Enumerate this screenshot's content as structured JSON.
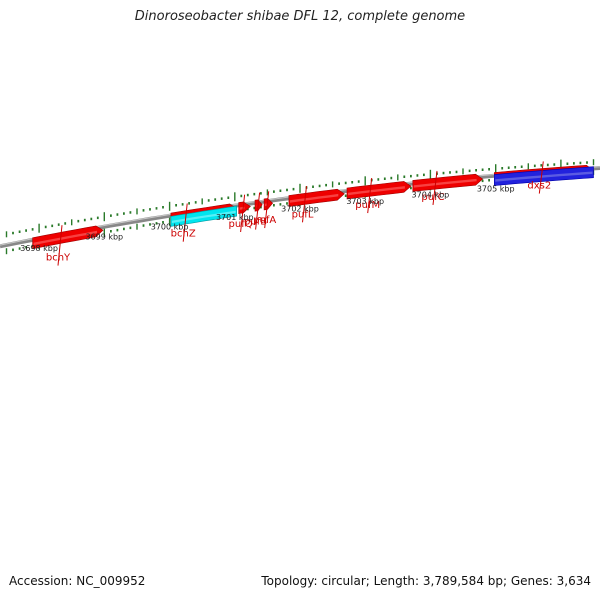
{
  "title": "Dinoroseobacter shibae DFL 12, complete genome",
  "footer": {
    "accession": "Accession: NC_009952",
    "summary": "Topology: circular; Length: 3,789,584 bp; Genes: 3,634"
  },
  "colors": {
    "forward_gene": "#ee0000",
    "reverse_gene_dark": "#cc0000",
    "cyan_gene": "#00e5ee",
    "blue_gene": "#2222dd",
    "backbone": "#888888",
    "tick": "#2a7a2a",
    "label": "#cc0000"
  },
  "genes": [
    {
      "name": "bchY",
      "start_kbp": 3697.9,
      "end_kbp": 3698.98,
      "strand": "+",
      "color": "red",
      "label_kbp": 3698.35
    },
    {
      "name": "bchZ",
      "start_kbp": 3700.02,
      "end_kbp": 3701.03,
      "strand": "+",
      "color": "red",
      "label_kbp": 3700.27
    },
    {
      "name": "",
      "start_kbp": 3700.02,
      "end_kbp": 3701.03,
      "strand": "-",
      "color": "cyan"
    },
    {
      "name": "pufQ",
      "start_kbp": 3701.06,
      "end_kbp": 3701.24,
      "strand": "+",
      "color": "red",
      "label_kbp": 3701.15
    },
    {
      "name": "pufB",
      "start_kbp": 3701.31,
      "end_kbp": 3701.42,
      "strand": "+",
      "color": "red",
      "label_kbp": 3701.38
    },
    {
      "name": "pufA",
      "start_kbp": 3701.45,
      "end_kbp": 3701.58,
      "strand": "+",
      "color": "red",
      "label_kbp": 3701.52
    },
    {
      "name": "pufL",
      "start_kbp": 3701.83,
      "end_kbp": 3702.68,
      "strand": "+",
      "color": "red",
      "label_kbp": 3702.1
    },
    {
      "name": "pufM",
      "start_kbp": 3702.72,
      "end_kbp": 3703.7,
      "strand": "+",
      "color": "red",
      "label_kbp": 3703.1
    },
    {
      "name": "pufC",
      "start_kbp": 3703.73,
      "end_kbp": 3704.8,
      "strand": "+",
      "color": "red",
      "label_kbp": 3704.1
    },
    {
      "name": "dxs2",
      "start_kbp": 3704.98,
      "end_kbp": 3706.5,
      "strand": "+",
      "color": "red",
      "label_kbp": 3705.73
    },
    {
      "name": "",
      "start_kbp": 3704.98,
      "end_kbp": 3706.5,
      "strand": "-",
      "color": "blue"
    }
  ],
  "kbp_marks": [
    {
      "kbp": 3698,
      "label": "3698 kbp"
    },
    {
      "kbp": 3699,
      "label": "3699 kbp"
    },
    {
      "kbp": 3700,
      "label": "3700 kbp"
    },
    {
      "kbp": 3701,
      "label": "3701 kbp"
    },
    {
      "kbp": 3702,
      "label": "3702 kbp"
    },
    {
      "kbp": 3703,
      "label": "3703 kbp"
    },
    {
      "kbp": 3704,
      "label": "3704 kbp"
    },
    {
      "kbp": 3705,
      "label": "3705 kbp"
    }
  ],
  "kbp_range": [
    3697.4,
    3706.6
  ]
}
